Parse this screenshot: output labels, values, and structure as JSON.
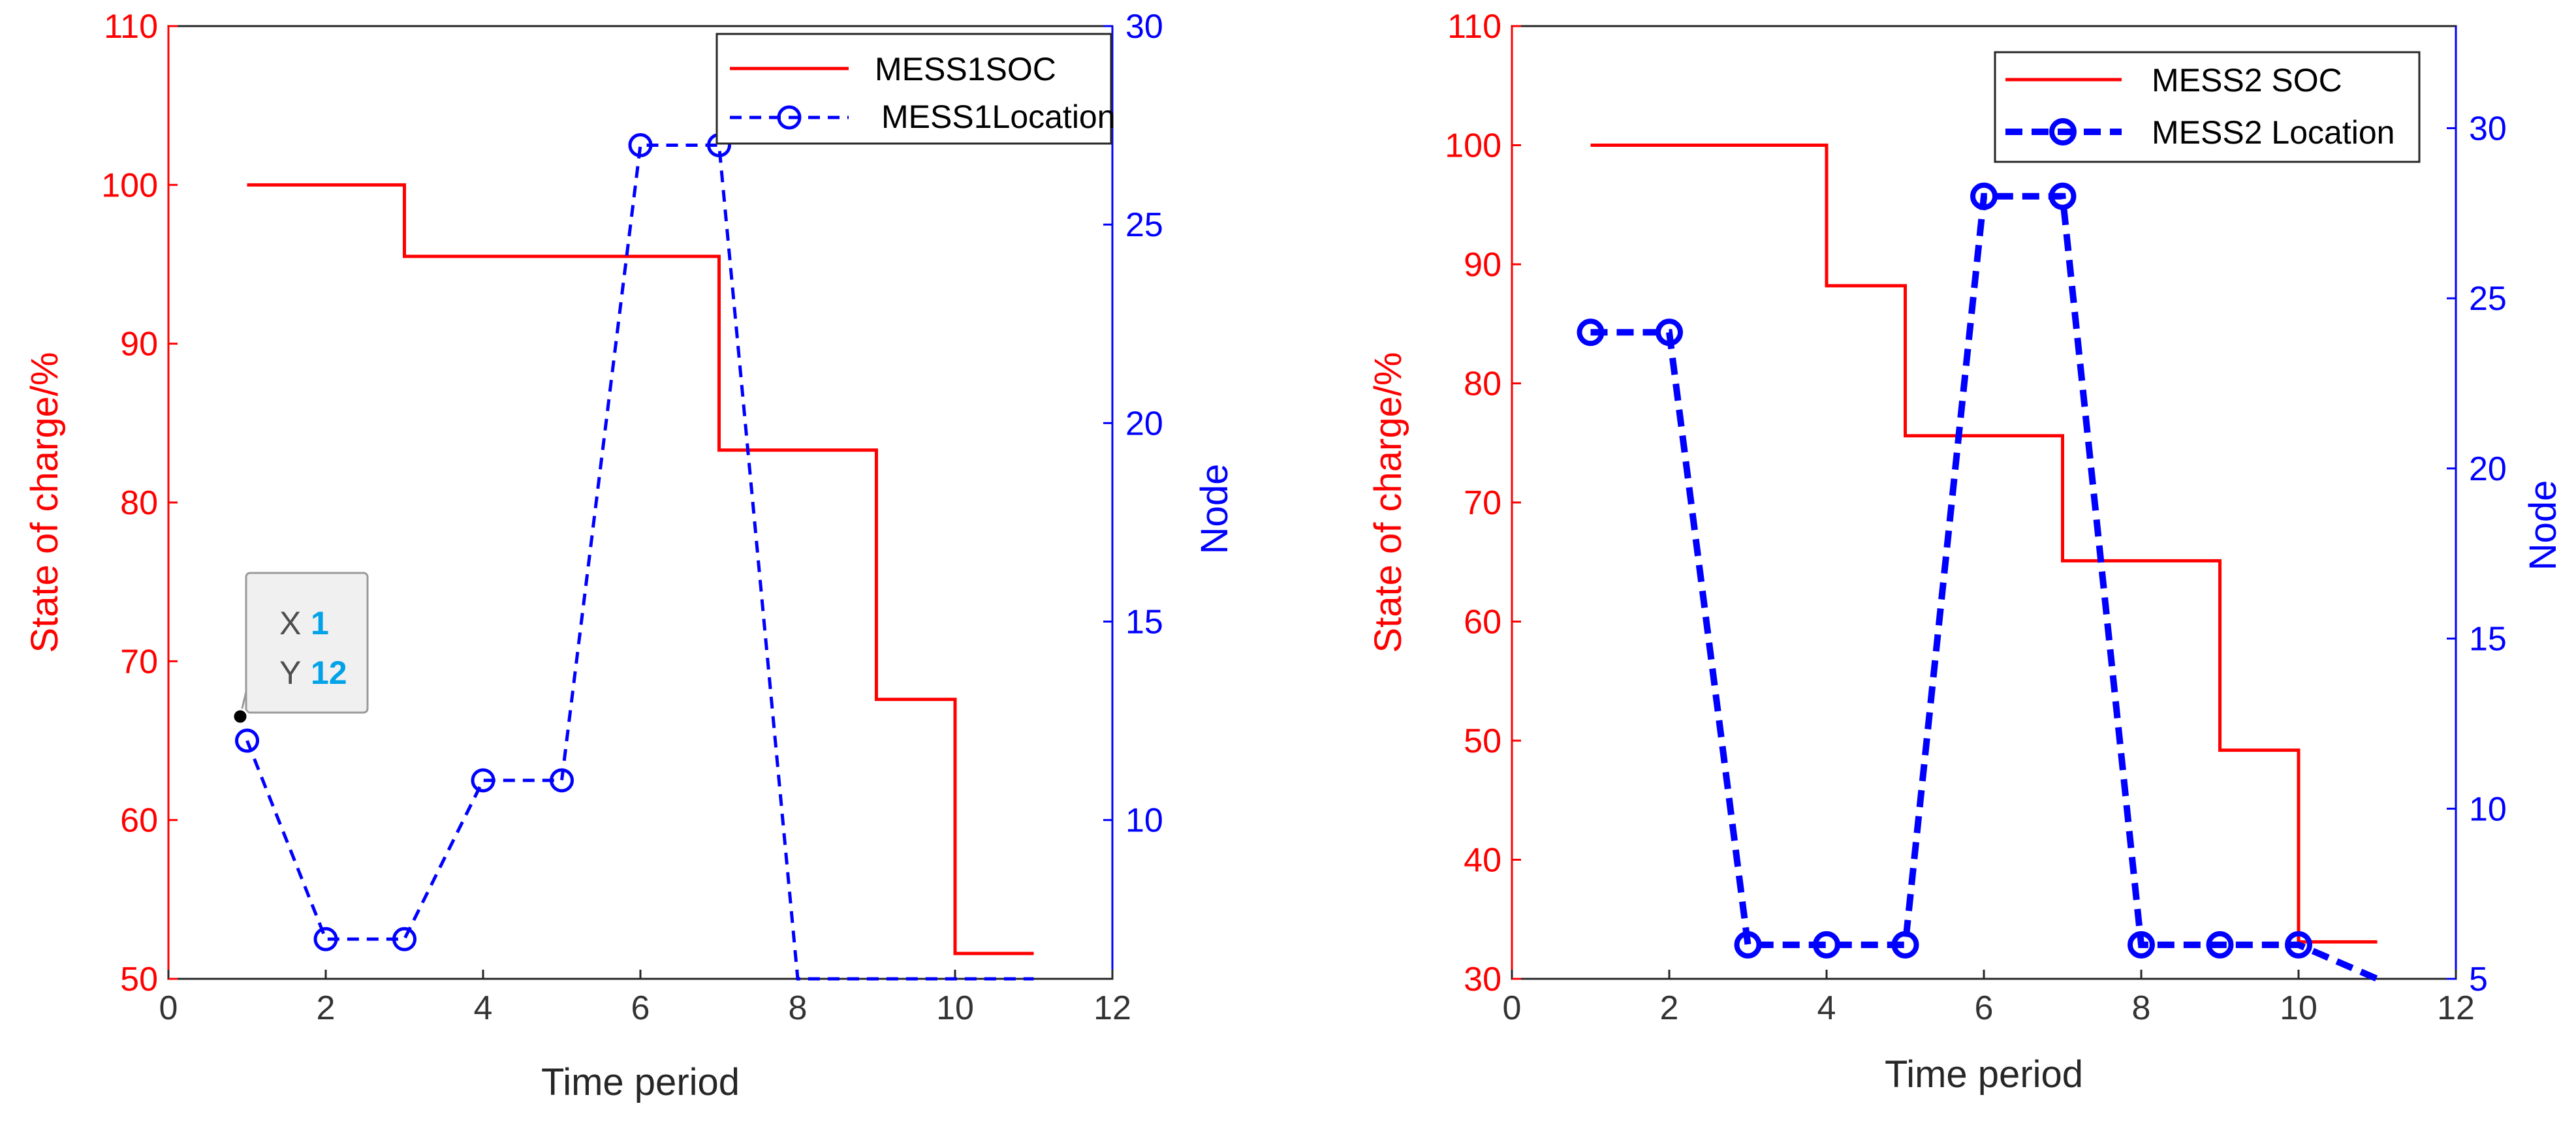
{
  "colors": {
    "left_axis": "#FF0000",
    "right_axis": "#0000FF",
    "x_axis": "#333333",
    "datatip_value": "#00A2E8"
  },
  "chart_data": [
    {
      "type": "line",
      "xlabel": "Time period",
      "ylabel_left": "State of charge/%",
      "ylabel_right": "Node",
      "xlim": [
        0,
        12
      ],
      "ylim_left": [
        50,
        110
      ],
      "ylim_right": [
        6,
        30
      ],
      "xticks": [
        "0",
        "2",
        "4",
        "6",
        "8",
        "10",
        "12"
      ],
      "yticks_left": [
        "50",
        "60",
        "70",
        "80",
        "90",
        "100",
        "110"
      ],
      "yticks_right": [
        "10",
        "15",
        "20",
        "25",
        "30"
      ],
      "legend_position": "top-right",
      "series": [
        {
          "name": "MESS1SOC",
          "axis": "left",
          "style": "solid-step",
          "color": "#FF0000",
          "x": [
            1,
            2,
            3,
            4,
            5,
            6,
            7,
            8,
            9,
            10,
            11
          ],
          "values": [
            100,
            100,
            95.5,
            95.5,
            95.5,
            95.5,
            83.3,
            83.3,
            67.6,
            51.6,
            51.6
          ]
        },
        {
          "name": "MESS1Location",
          "axis": "right",
          "style": "dashed-circle",
          "color": "#0000FF",
          "x": [
            1,
            2,
            3,
            4,
            5,
            6,
            7,
            8,
            9,
            10,
            11
          ],
          "values": [
            12,
            7,
            7,
            11,
            11,
            27,
            27,
            6,
            6,
            6,
            6
          ]
        }
      ],
      "datatip": {
        "x_label": "X",
        "x_value": "1",
        "y_label": "Y",
        "y_value": "12"
      }
    },
    {
      "type": "line",
      "xlabel": "Time period",
      "ylabel_left": "State of charge/%",
      "ylabel_right": "Node",
      "xlim": [
        0,
        12
      ],
      "ylim_left": [
        30,
        110
      ],
      "ylim_right": [
        5,
        33
      ],
      "xticks": [
        "0",
        "2",
        "4",
        "6",
        "8",
        "10",
        "12"
      ],
      "yticks_left": [
        "30",
        "40",
        "50",
        "60",
        "70",
        "80",
        "90",
        "100",
        "110"
      ],
      "yticks_right": [
        "5",
        "10",
        "15",
        "20",
        "25",
        "30"
      ],
      "legend_position": "top-right",
      "series": [
        {
          "name": "MESS2 SOC",
          "axis": "left",
          "style": "solid-step",
          "color": "#FF0000",
          "x": [
            1,
            2,
            3,
            4,
            5,
            6,
            7,
            8,
            9,
            10,
            11
          ],
          "values": [
            100,
            100,
            100,
            88.2,
            75.6,
            75.6,
            65.1,
            65.1,
            49.2,
            33.1,
            33.1
          ]
        },
        {
          "name": "MESS2 Location",
          "axis": "right",
          "style": "bold-dashed-circle",
          "color": "#0000FF",
          "x": [
            1,
            2,
            3,
            4,
            5,
            6,
            7,
            8,
            9,
            10,
            11
          ],
          "values": [
            24,
            24,
            6,
            6,
            6,
            28,
            28,
            6,
            6,
            6,
            5
          ]
        }
      ]
    }
  ]
}
